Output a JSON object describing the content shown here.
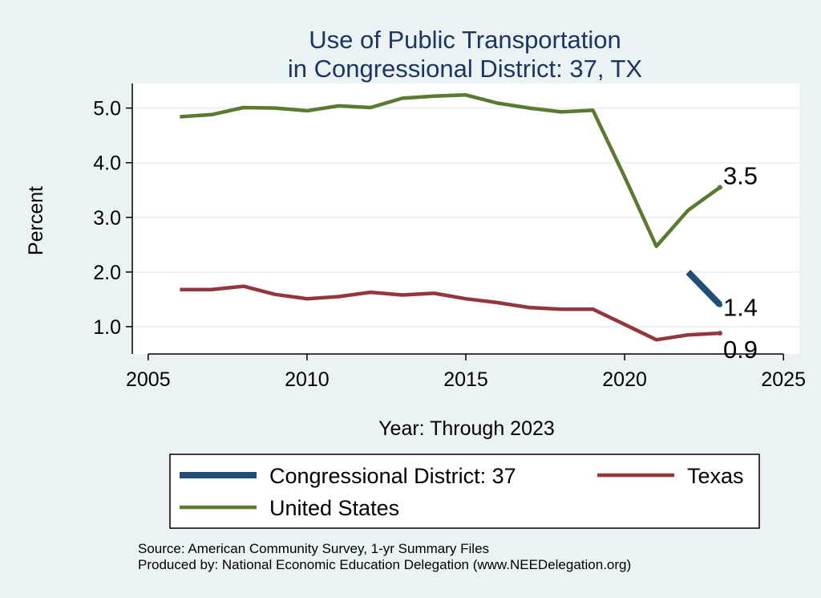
{
  "chart_data": {
    "type": "line",
    "title_lines": [
      "Use of Public Transportation",
      "in Congressional District: 37, TX"
    ],
    "xlabel": "Year: Through 2023",
    "ylabel": "Percent",
    "xlim": [
      2004.5,
      2025.5
    ],
    "ylim": [
      0.5,
      5.45
    ],
    "x_ticks": [
      2005,
      2010,
      2015,
      2020,
      2025
    ],
    "y_ticks": [
      1.0,
      2.0,
      3.0,
      4.0,
      5.0
    ],
    "y_tick_labels": [
      "1.0",
      "2.0",
      "3.0",
      "4.0",
      "5.0"
    ],
    "grid": true,
    "legend_position": "bottom",
    "series": [
      {
        "name": "Congressional District: 37",
        "color": "#1f4e79",
        "x": [
          2022,
          2023
        ],
        "y": [
          2.0,
          1.4
        ],
        "end_label": "1.4"
      },
      {
        "name": "Texas",
        "color": "#93363e",
        "x": [
          2006,
          2007,
          2008,
          2009,
          2010,
          2011,
          2012,
          2013,
          2014,
          2015,
          2016,
          2017,
          2018,
          2019,
          2020,
          2021,
          2022,
          2023
        ],
        "y": [
          1.68,
          1.68,
          1.74,
          1.59,
          1.51,
          1.55,
          1.63,
          1.58,
          1.61,
          1.51,
          1.44,
          1.35,
          1.32,
          1.32,
          1.04,
          0.76,
          0.85,
          0.88
        ],
        "end_label": "0.9"
      },
      {
        "name": "United States",
        "color": "#5a7a32",
        "x": [
          2006,
          2007,
          2008,
          2009,
          2010,
          2011,
          2012,
          2013,
          2014,
          2015,
          2016,
          2017,
          2018,
          2019,
          2020,
          2021,
          2022,
          2023
        ],
        "y": [
          4.84,
          4.88,
          5.01,
          5.0,
          4.95,
          5.04,
          5.01,
          5.18,
          5.22,
          5.24,
          5.09,
          5.0,
          4.93,
          4.96,
          3.74,
          2.47,
          3.13,
          3.55
        ],
        "end_label": "3.5"
      }
    ],
    "legend_order": [
      "Congressional District: 37",
      "Texas",
      "United States"
    ]
  },
  "footer": {
    "source": "Source: American Community Survey, 1-yr Summary Files",
    "produced": "Produced by: National Economic Education Delegation (www.NEEDelegation.org)"
  }
}
